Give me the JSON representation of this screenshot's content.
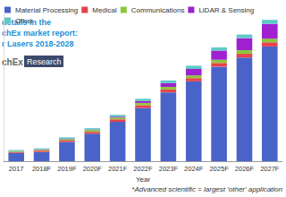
{
  "chart_data": {
    "type": "bar",
    "stacked": true,
    "grid": false,
    "tick_labels": "x",
    "x_label": "Year",
    "annotations": [
      "details in the",
      "chEx market report:",
      "r Lasers 2018-2028",
      "chEx",
      "Research",
      "*Advanced scientific = largest 'other' application"
    ],
    "categories": [
      "2017",
      "2018F",
      "2019F",
      "2020F",
      "2021F",
      "2022F",
      "2023F",
      "2024F",
      "2025F",
      "2026F",
      "2027F"
    ],
    "ylim": [
      0,
      160
    ],
    "yticks": [
      0,
      40,
      80,
      120,
      160
    ],
    "legend": "top",
    "series": [
      {
        "name": "Material Processing",
        "color": "#4a63c8",
        "values": [
          9,
          10,
          21,
          30,
          43,
          58,
          75,
          87,
          103,
          113,
          125
        ]
      },
      {
        "name": "Medical",
        "color": "#e8414a",
        "values": [
          1,
          1.5,
          1.5,
          2,
          2.5,
          3,
          3,
          3.5,
          4,
          4,
          4.5
        ]
      },
      {
        "name": "Communications",
        "color": "#8cc63e",
        "values": [
          1,
          1,
          1.5,
          2,
          2,
          2.5,
          3,
          3,
          3.5,
          4,
          4
        ]
      },
      {
        "name": "LiDAR & Sensing",
        "color": "#a020d0",
        "values": [
          0.3,
          0.5,
          0.5,
          0.5,
          1,
          2,
          4,
          7,
          10,
          13,
          16
        ]
      },
      {
        "name": "Other",
        "color": "#5ec8c8",
        "values": [
          1,
          1,
          1.5,
          1.5,
          2,
          2.5,
          3,
          3.5,
          3.5,
          4,
          4.5
        ]
      }
    ]
  }
}
